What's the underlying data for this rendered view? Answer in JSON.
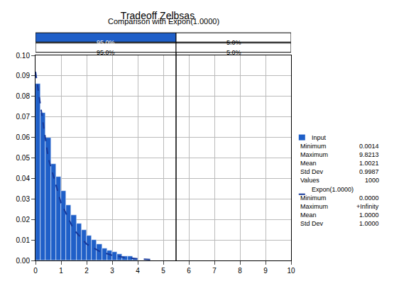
{
  "chart_data": {
    "type": "histogram",
    "title": "Tradeoff Zelbsas",
    "subtitle": "Comparison with Expon(1.0000)",
    "bins": [
      0,
      0.2,
      0.4,
      0.6,
      0.8,
      1.0,
      1.2,
      1.4,
      1.6,
      1.8,
      2.0,
      2.2,
      2.4,
      2.6,
      2.8,
      3.0,
      3.2,
      3.4,
      3.6,
      3.8,
      4.0
    ],
    "series": [
      {
        "name": "Input",
        "type": "bar",
        "color": "#1f5fc8",
        "values": [
          0.086,
          0.072,
          0.06,
          0.047,
          0.041,
          0.034,
          0.027,
          0.022,
          0.018,
          0.015,
          0.012,
          0.01,
          0.008,
          0.006,
          0.005,
          0.004,
          0.003,
          0.002,
          0.002,
          0.001
        ],
        "stats": [
          [
            "Minimum",
            "0.0014"
          ],
          [
            "Maximum",
            "9.8213"
          ],
          [
            "Mean",
            "1.0021"
          ],
          [
            "Std Dev",
            "0.9987"
          ],
          [
            "Values",
            "1000"
          ]
        ]
      },
      {
        "name": "Expon(1.0000)",
        "type": "line",
        "color": "#16389a",
        "line_style": "dash",
        "x": [
          0,
          0.5,
          1.0,
          1.5,
          2.0,
          2.5,
          3.0,
          3.5,
          4.0,
          4.5
        ],
        "values": [
          0.092,
          0.05,
          0.028,
          0.015,
          0.008,
          0.0045,
          0.0025,
          0.0014,
          0.0008,
          0.0004
        ],
        "stats": [
          [
            "Minimum",
            "0.0000"
          ],
          [
            "Maximum",
            "+Infinity"
          ],
          [
            "Mean",
            "1.0000"
          ],
          [
            "Std Dev",
            "1.0000"
          ]
        ]
      }
    ],
    "delimiter": 5.5,
    "bands": [
      [
        "95.0%",
        "5.0%"
      ],
      [
        "95.0%",
        "5.0%"
      ]
    ],
    "xlim": [
      0,
      10
    ],
    "xticks": [
      0,
      1,
      2,
      3,
      4,
      5,
      6,
      7,
      8,
      9,
      10
    ],
    "ylim": [
      0,
      0.1
    ],
    "yticks": [
      {
        "value": 0,
        "label": "0.00"
      },
      {
        "value": 0.01,
        "label": "0.01"
      },
      {
        "value": 0.02,
        "label": "0.02"
      },
      {
        "value": 0.03,
        "label": "0.03"
      },
      {
        "value": 0.04,
        "label": "0.04"
      },
      {
        "value": 0.05,
        "label": "0.05"
      },
      {
        "value": 0.06,
        "label": "0.06"
      },
      {
        "value": 0.07,
        "label": "0.07"
      },
      {
        "value": 0.08,
        "label": "0.08"
      },
      {
        "value": 0.09,
        "label": "0.09"
      },
      {
        "value": 0.1,
        "label": "0.10"
      }
    ],
    "grid": true,
    "legend": "right"
  }
}
